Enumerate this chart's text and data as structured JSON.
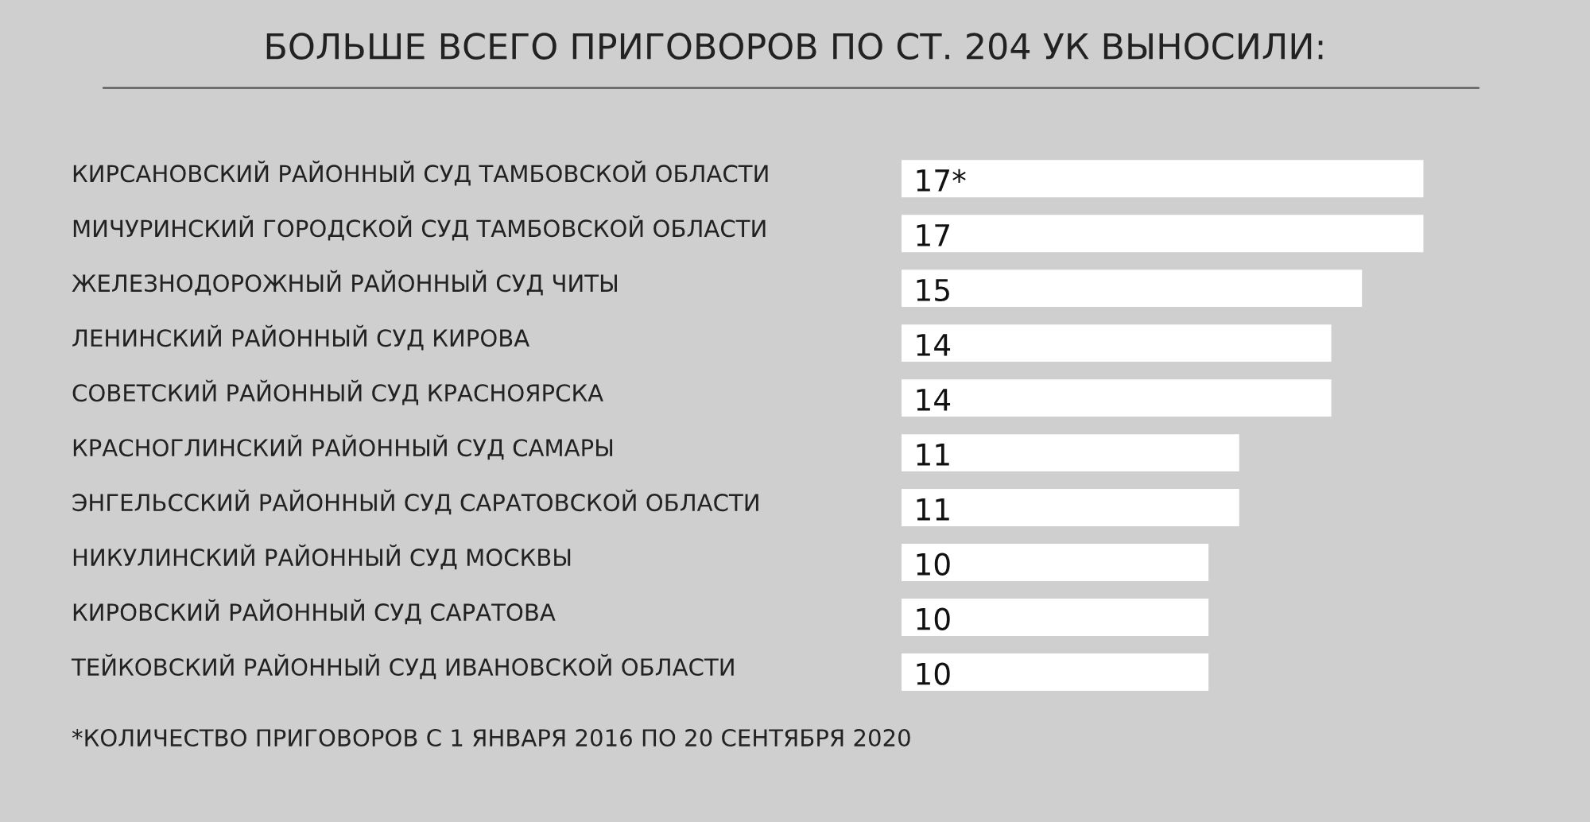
{
  "chart_data": {
    "type": "bar",
    "orientation": "horizontal",
    "title": "БОЛЬШЕ ВСЕГО ПРИГОВОРОВ ПО СТ. 204 УК ВЫНОСИЛИ:",
    "categories": [
      "КИРСАНОВСКИЙ РАЙОННЫЙ СУД ТАМБОВСКОЙ ОБЛАСТИ",
      "МИЧУРИНСКИЙ ГОРОДСКОЙ СУД ТАМБОВСКОЙ ОБЛАСТИ",
      "ЖЕЛЕЗНОДОРОЖНЫЙ РАЙОННЫЙ СУД ЧИТЫ",
      "ЛЕНИНСКИЙ РАЙОННЫЙ СУД КИРОВА",
      "СОВЕТСКИЙ РАЙОННЫЙ СУД КРАСНОЯРСКА",
      "КРАСНОГЛИНСКИЙ РАЙОННЫЙ СУД САМАРЫ",
      "ЭНГЕЛЬССКИЙ РАЙОННЫЙ СУД САРАТОВСКОЙ ОБЛАСТИ",
      "НИКУЛИНСКИЙ РАЙОННЫЙ СУД МОСКВЫ",
      "КИРОВСКИЙ РАЙОННЫЙ СУД САРАТОВА",
      "ТЕЙКОВСКИЙ РАЙОННЫЙ СУД ИВАНОВСКОЙ ОБЛАСТИ"
    ],
    "values": [
      17,
      17,
      15,
      14,
      14,
      11,
      11,
      10,
      10,
      10
    ],
    "value_labels": [
      "17*",
      "17",
      "15",
      "14",
      "14",
      "11",
      "11",
      "10",
      "10",
      "10"
    ],
    "color": "#ffffff",
    "annotations": [
      "*КОЛИЧЕСТВО ПРИГОВОРОВ С 1 ЯНВАРЯ 2016 ПО 20 СЕНТЯБРЯ 2020"
    ]
  }
}
